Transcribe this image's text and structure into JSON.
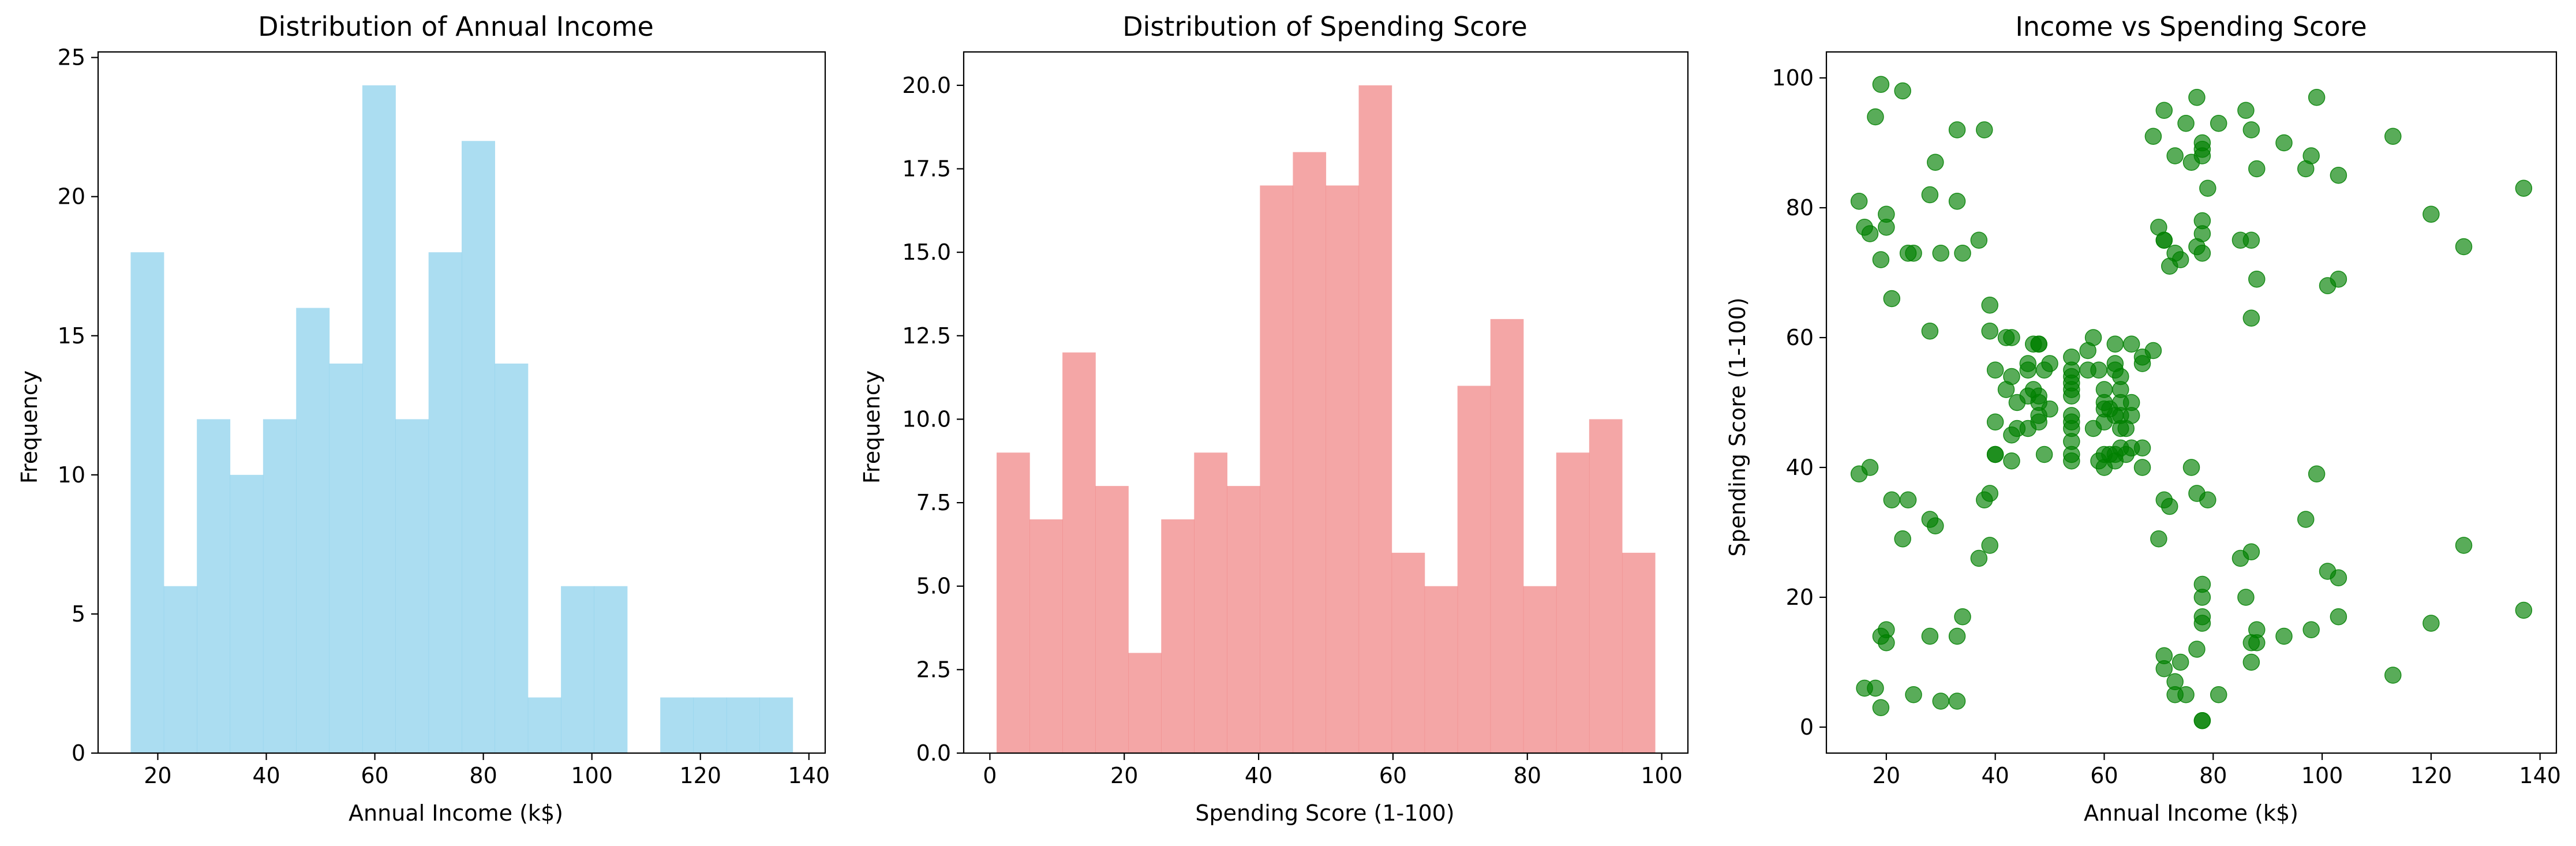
{
  "colors": {
    "income": "#87CEEB",
    "spending": "#F08080",
    "scatter": "#008000",
    "axis": "#000000"
  },
  "chart_data": [
    {
      "type": "bar",
      "title": "Distribution of Annual Income",
      "xlabel": "Annual Income (k$)",
      "ylabel": "Frequency",
      "xlim": [
        9,
        143
      ],
      "ylim": [
        0,
        25.2
      ],
      "xticks": [
        20,
        40,
        60,
        80,
        100,
        120,
        140
      ],
      "yticks": [
        0,
        5,
        10,
        15,
        20,
        25
      ],
      "bin_start": 15,
      "bin_width": 6.1,
      "values": [
        18,
        6,
        12,
        10,
        12,
        16,
        14,
        24,
        12,
        18,
        22,
        14,
        2,
        6,
        6,
        0,
        2,
        2,
        2,
        2
      ],
      "grid": false
    },
    {
      "type": "bar",
      "title": "Distribution of Spending Score",
      "xlabel": "Spending Score (1-100)",
      "ylabel": "Frequency",
      "xlim": [
        -3.9,
        103.9
      ],
      "ylim": [
        0,
        21
      ],
      "xticks": [
        0,
        20,
        40,
        60,
        80,
        100
      ],
      "yticks": [
        0.0,
        2.5,
        5.0,
        7.5,
        10.0,
        12.5,
        15.0,
        17.5,
        20.0
      ],
      "bin_start": 1,
      "bin_width": 4.9,
      "values": [
        9,
        7,
        12,
        8,
        3,
        7,
        9,
        8,
        17,
        18,
        17,
        20,
        6,
        5,
        11,
        13,
        5,
        9,
        10,
        6
      ],
      "grid": false
    },
    {
      "type": "scatter",
      "title": "Income vs Spending Score",
      "xlabel": "Annual Income (k$)",
      "ylabel": "Spending Score (1-100)",
      "xlim": [
        9,
        143
      ],
      "ylim": [
        -4,
        104
      ],
      "xticks": [
        20,
        40,
        60,
        80,
        100,
        120,
        140
      ],
      "yticks": [
        0,
        20,
        40,
        60,
        80,
        100
      ],
      "grid": false,
      "points": [
        [
          15,
          39
        ],
        [
          15,
          81
        ],
        [
          16,
          6
        ],
        [
          16,
          77
        ],
        [
          17,
          40
        ],
        [
          17,
          76
        ],
        [
          18,
          6
        ],
        [
          18,
          94
        ],
        [
          19,
          3
        ],
        [
          19,
          72
        ],
        [
          19,
          14
        ],
        [
          19,
          99
        ],
        [
          20,
          15
        ],
        [
          20,
          77
        ],
        [
          20,
          13
        ],
        [
          20,
          79
        ],
        [
          21,
          35
        ],
        [
          21,
          66
        ],
        [
          23,
          29
        ],
        [
          23,
          98
        ],
        [
          24,
          35
        ],
        [
          24,
          73
        ],
        [
          25,
          5
        ],
        [
          25,
          73
        ],
        [
          28,
          14
        ],
        [
          28,
          82
        ],
        [
          28,
          32
        ],
        [
          28,
          61
        ],
        [
          29,
          31
        ],
        [
          29,
          87
        ],
        [
          30,
          4
        ],
        [
          30,
          73
        ],
        [
          33,
          4
        ],
        [
          33,
          92
        ],
        [
          33,
          14
        ],
        [
          33,
          81
        ],
        [
          34,
          17
        ],
        [
          34,
          73
        ],
        [
          37,
          26
        ],
        [
          37,
          75
        ],
        [
          38,
          35
        ],
        [
          38,
          92
        ],
        [
          39,
          36
        ],
        [
          39,
          61
        ],
        [
          39,
          28
        ],
        [
          39,
          65
        ],
        [
          40,
          55
        ],
        [
          40,
          47
        ],
        [
          40,
          42
        ],
        [
          40,
          42
        ],
        [
          42,
          52
        ],
        [
          42,
          60
        ],
        [
          43,
          54
        ],
        [
          43,
          60
        ],
        [
          43,
          45
        ],
        [
          43,
          41
        ],
        [
          44,
          50
        ],
        [
          44,
          46
        ],
        [
          46,
          51
        ],
        [
          46,
          46
        ],
        [
          46,
          56
        ],
        [
          46,
          55
        ],
        [
          47,
          52
        ],
        [
          47,
          59
        ],
        [
          48,
          51
        ],
        [
          48,
          59
        ],
        [
          48,
          50
        ],
        [
          48,
          48
        ],
        [
          48,
          59
        ],
        [
          48,
          47
        ],
        [
          49,
          55
        ],
        [
          49,
          42
        ],
        [
          50,
          49
        ],
        [
          50,
          56
        ],
        [
          54,
          47
        ],
        [
          54,
          54
        ],
        [
          54,
          53
        ],
        [
          54,
          48
        ],
        [
          54,
          52
        ],
        [
          54,
          42
        ],
        [
          54,
          51
        ],
        [
          54,
          55
        ],
        [
          54,
          41
        ],
        [
          54,
          44
        ],
        [
          54,
          57
        ],
        [
          54,
          46
        ],
        [
          57,
          58
        ],
        [
          57,
          55
        ],
        [
          58,
          60
        ],
        [
          58,
          46
        ],
        [
          59,
          55
        ],
        [
          59,
          41
        ],
        [
          60,
          49
        ],
        [
          60,
          40
        ],
        [
          60,
          42
        ],
        [
          60,
          52
        ],
        [
          60,
          47
        ],
        [
          60,
          50
        ],
        [
          61,
          42
        ],
        [
          61,
          49
        ],
        [
          62,
          41
        ],
        [
          62,
          48
        ],
        [
          62,
          59
        ],
        [
          62,
          55
        ],
        [
          62,
          56
        ],
        [
          62,
          42
        ],
        [
          63,
          50
        ],
        [
          63,
          46
        ],
        [
          63,
          43
        ],
        [
          63,
          48
        ],
        [
          63,
          52
        ],
        [
          63,
          54
        ],
        [
          64,
          42
        ],
        [
          64,
          46
        ],
        [
          65,
          48
        ],
        [
          65,
          50
        ],
        [
          65,
          43
        ],
        [
          65,
          59
        ],
        [
          67,
          43
        ],
        [
          67,
          57
        ],
        [
          67,
          56
        ],
        [
          67,
          40
        ],
        [
          69,
          58
        ],
        [
          69,
          91
        ],
        [
          70,
          29
        ],
        [
          70,
          77
        ],
        [
          71,
          35
        ],
        [
          71,
          95
        ],
        [
          71,
          11
        ],
        [
          71,
          75
        ],
        [
          71,
          9
        ],
        [
          71,
          75
        ],
        [
          72,
          34
        ],
        [
          72,
          71
        ],
        [
          73,
          5
        ],
        [
          73,
          88
        ],
        [
          73,
          7
        ],
        [
          73,
          73
        ],
        [
          74,
          10
        ],
        [
          74,
          72
        ],
        [
          75,
          5
        ],
        [
          75,
          93
        ],
        [
          76,
          40
        ],
        [
          76,
          87
        ],
        [
          77,
          12
        ],
        [
          77,
          97
        ],
        [
          77,
          36
        ],
        [
          77,
          74
        ],
        [
          78,
          22
        ],
        [
          78,
          90
        ],
        [
          78,
          17
        ],
        [
          78,
          88
        ],
        [
          78,
          20
        ],
        [
          78,
          76
        ],
        [
          78,
          16
        ],
        [
          78,
          89
        ],
        [
          78,
          1
        ],
        [
          78,
          78
        ],
        [
          78,
          1
        ],
        [
          78,
          73
        ],
        [
          79,
          35
        ],
        [
          79,
          83
        ],
        [
          81,
          5
        ],
        [
          81,
          93
        ],
        [
          85,
          26
        ],
        [
          85,
          75
        ],
        [
          86,
          20
        ],
        [
          86,
          95
        ],
        [
          87,
          27
        ],
        [
          87,
          63
        ],
        [
          87,
          13
        ],
        [
          87,
          75
        ],
        [
          87,
          10
        ],
        [
          87,
          92
        ],
        [
          88,
          13
        ],
        [
          88,
          86
        ],
        [
          88,
          15
        ],
        [
          88,
          69
        ],
        [
          93,
          14
        ],
        [
          93,
          90
        ],
        [
          97,
          32
        ],
        [
          97,
          86
        ],
        [
          98,
          15
        ],
        [
          98,
          88
        ],
        [
          99,
          39
        ],
        [
          99,
          97
        ],
        [
          101,
          24
        ],
        [
          101,
          68
        ],
        [
          103,
          17
        ],
        [
          103,
          85
        ],
        [
          103,
          23
        ],
        [
          103,
          69
        ],
        [
          113,
          8
        ],
        [
          113,
          91
        ],
        [
          120,
          16
        ],
        [
          120,
          79
        ],
        [
          126,
          28
        ],
        [
          126,
          74
        ],
        [
          137,
          18
        ],
        [
          137,
          83
        ]
      ]
    }
  ]
}
